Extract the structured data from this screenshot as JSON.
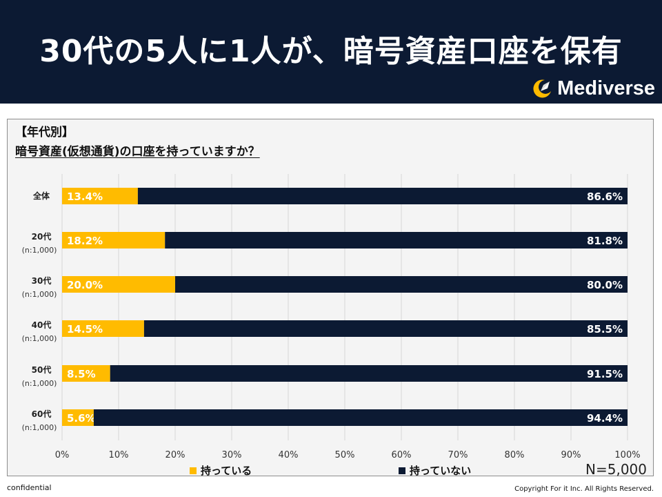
{
  "title": "30代の5人に1人が、暗号資産口座を保有",
  "brand": {
    "name": "Mediverse",
    "logo_icon": "crescent-rocket-icon"
  },
  "question": {
    "category": "【年代別】",
    "text": "暗号資産(仮想通貨)の口座を持っていますか？"
  },
  "chart_data": {
    "type": "bar",
    "orientation": "horizontal",
    "stacked": true,
    "categories": [
      {
        "label": "全体",
        "sub": ""
      },
      {
        "label": "20代",
        "sub": "(n:1,000)"
      },
      {
        "label": "30代",
        "sub": "(n:1,000)"
      },
      {
        "label": "40代",
        "sub": "(n:1,000)"
      },
      {
        "label": "50代",
        "sub": "(n:1,000)"
      },
      {
        "label": "60代",
        "sub": "(n:1,000)"
      }
    ],
    "series": [
      {
        "name": "持っている",
        "color": "#ffbb00",
        "values": [
          13.4,
          18.2,
          20.0,
          14.5,
          8.5,
          5.6
        ]
      },
      {
        "name": "持っていない",
        "color": "#0c1a33",
        "values": [
          86.6,
          81.8,
          80.0,
          85.5,
          91.5,
          94.4
        ]
      }
    ],
    "xlim": [
      0,
      100
    ],
    "xticks": [
      "0%",
      "10%",
      "20%",
      "30%",
      "40%",
      "50%",
      "60%",
      "70%",
      "80%",
      "90%",
      "100%"
    ],
    "value_suffix": "%",
    "grid": true,
    "legend": "bottom"
  },
  "sample_size": "N=5,000",
  "footer": {
    "left": "confidential",
    "right": "Copyright For it Inc. All Rights Reserved."
  }
}
